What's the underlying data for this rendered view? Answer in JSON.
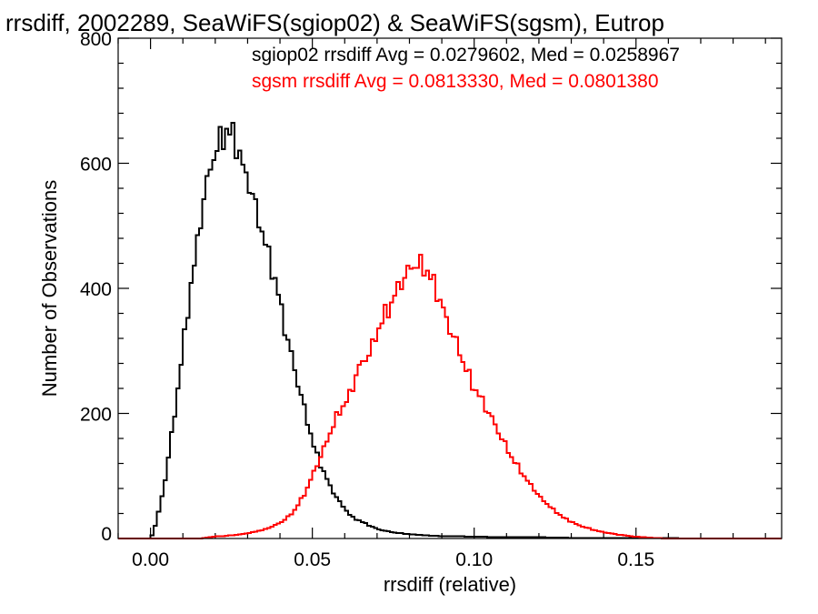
{
  "chart_data": {
    "type": "histogram",
    "title": "rrsdiff, 2002289, SeaWiFS(sgiop02) & SeaWiFS(sgsm), Eutrop",
    "xlabel": "rrsdiff (relative)",
    "ylabel": "Number of Observations",
    "xlim": [
      -0.01,
      0.195
    ],
    "ylim": [
      0,
      800
    ],
    "x_ticks": [
      0.0,
      0.05,
      0.1,
      0.15
    ],
    "x_tick_labels": [
      "0.00",
      "0.05",
      "0.10",
      "0.15"
    ],
    "y_ticks": [
      0,
      200,
      400,
      600,
      800
    ],
    "y_tick_labels": [
      "0",
      "200",
      "400",
      "600",
      "800"
    ],
    "bin_width": 0.001,
    "grid": false,
    "series": [
      {
        "name": "sgiop02",
        "color": "#000000",
        "stats_label": "sgiop02 rrsdiff Avg = 0.0279602, Med = 0.0258967",
        "avg": 0.0279602,
        "median": 0.0258967,
        "shape_points": [
          [
            -0.01,
            0
          ],
          [
            0.0,
            0
          ],
          [
            0.001,
            10
          ],
          [
            0.002,
            30
          ],
          [
            0.003,
            55
          ],
          [
            0.004,
            80
          ],
          [
            0.005,
            110
          ],
          [
            0.006,
            150
          ],
          [
            0.007,
            180
          ],
          [
            0.008,
            220
          ],
          [
            0.009,
            260
          ],
          [
            0.01,
            300
          ],
          [
            0.011,
            345
          ],
          [
            0.012,
            390
          ],
          [
            0.013,
            420
          ],
          [
            0.014,
            450
          ],
          [
            0.015,
            500
          ],
          [
            0.016,
            525
          ],
          [
            0.017,
            555
          ],
          [
            0.018,
            580
          ],
          [
            0.019,
            610
          ],
          [
            0.02,
            615
          ],
          [
            0.021,
            630
          ],
          [
            0.022,
            640
          ],
          [
            0.023,
            650
          ],
          [
            0.024,
            652
          ],
          [
            0.025,
            646
          ],
          [
            0.026,
            640
          ],
          [
            0.027,
            628
          ],
          [
            0.028,
            600
          ],
          [
            0.029,
            585
          ],
          [
            0.03,
            575
          ],
          [
            0.031,
            560
          ],
          [
            0.032,
            540
          ],
          [
            0.033,
            515
          ],
          [
            0.034,
            500
          ],
          [
            0.035,
            485
          ],
          [
            0.036,
            460
          ],
          [
            0.037,
            440
          ],
          [
            0.038,
            425
          ],
          [
            0.039,
            400
          ],
          [
            0.04,
            380
          ],
          [
            0.041,
            350
          ],
          [
            0.042,
            325
          ],
          [
            0.043,
            305
          ],
          [
            0.044,
            285
          ],
          [
            0.045,
            255
          ],
          [
            0.046,
            240
          ],
          [
            0.047,
            220
          ],
          [
            0.048,
            195
          ],
          [
            0.049,
            180
          ],
          [
            0.05,
            155
          ],
          [
            0.051,
            140
          ],
          [
            0.052,
            125
          ],
          [
            0.054,
            100
          ],
          [
            0.056,
            78
          ],
          [
            0.058,
            62
          ],
          [
            0.06,
            48
          ],
          [
            0.062,
            35
          ],
          [
            0.064,
            30
          ],
          [
            0.066,
            25
          ],
          [
            0.068,
            20
          ],
          [
            0.07,
            15
          ],
          [
            0.072,
            13
          ],
          [
            0.075,
            10
          ],
          [
            0.08,
            7
          ],
          [
            0.085,
            5
          ],
          [
            0.09,
            4
          ],
          [
            0.1,
            3
          ],
          [
            0.11,
            2
          ],
          [
            0.12,
            2
          ],
          [
            0.13,
            1
          ],
          [
            0.15,
            1
          ],
          [
            0.17,
            0
          ],
          [
            0.195,
            0
          ]
        ]
      },
      {
        "name": "sgsm",
        "color": "#ff0000",
        "stats_label": "sgsm rrsdiff Avg = 0.0813330, Med = 0.0801380",
        "avg": 0.081333,
        "median": 0.080138,
        "shape_points": [
          [
            -0.01,
            0
          ],
          [
            0.015,
            0
          ],
          [
            0.02,
            3
          ],
          [
            0.025,
            5
          ],
          [
            0.03,
            8
          ],
          [
            0.035,
            14
          ],
          [
            0.038,
            20
          ],
          [
            0.04,
            25
          ],
          [
            0.042,
            32
          ],
          [
            0.044,
            42
          ],
          [
            0.046,
            58
          ],
          [
            0.048,
            75
          ],
          [
            0.05,
            100
          ],
          [
            0.052,
            125
          ],
          [
            0.054,
            150
          ],
          [
            0.056,
            175
          ],
          [
            0.058,
            200
          ],
          [
            0.06,
            215
          ],
          [
            0.062,
            235
          ],
          [
            0.064,
            270
          ],
          [
            0.066,
            285
          ],
          [
            0.068,
            300
          ],
          [
            0.07,
            330
          ],
          [
            0.072,
            355
          ],
          [
            0.074,
            370
          ],
          [
            0.076,
            395
          ],
          [
            0.078,
            415
          ],
          [
            0.08,
            430
          ],
          [
            0.082,
            440
          ],
          [
            0.084,
            435
          ],
          [
            0.086,
            425
          ],
          [
            0.088,
            400
          ],
          [
            0.09,
            375
          ],
          [
            0.092,
            340
          ],
          [
            0.094,
            320
          ],
          [
            0.096,
            290
          ],
          [
            0.098,
            265
          ],
          [
            0.1,
            240
          ],
          [
            0.102,
            225
          ],
          [
            0.104,
            205
          ],
          [
            0.106,
            188
          ],
          [
            0.108,
            165
          ],
          [
            0.11,
            145
          ],
          [
            0.112,
            125
          ],
          [
            0.114,
            112
          ],
          [
            0.116,
            95
          ],
          [
            0.118,
            82
          ],
          [
            0.12,
            68
          ],
          [
            0.124,
            48
          ],
          [
            0.128,
            32
          ],
          [
            0.132,
            22
          ],
          [
            0.136,
            15
          ],
          [
            0.14,
            10
          ],
          [
            0.145,
            6
          ],
          [
            0.15,
            3
          ],
          [
            0.155,
            1
          ],
          [
            0.16,
            0
          ],
          [
            0.195,
            0
          ]
        ]
      }
    ]
  }
}
